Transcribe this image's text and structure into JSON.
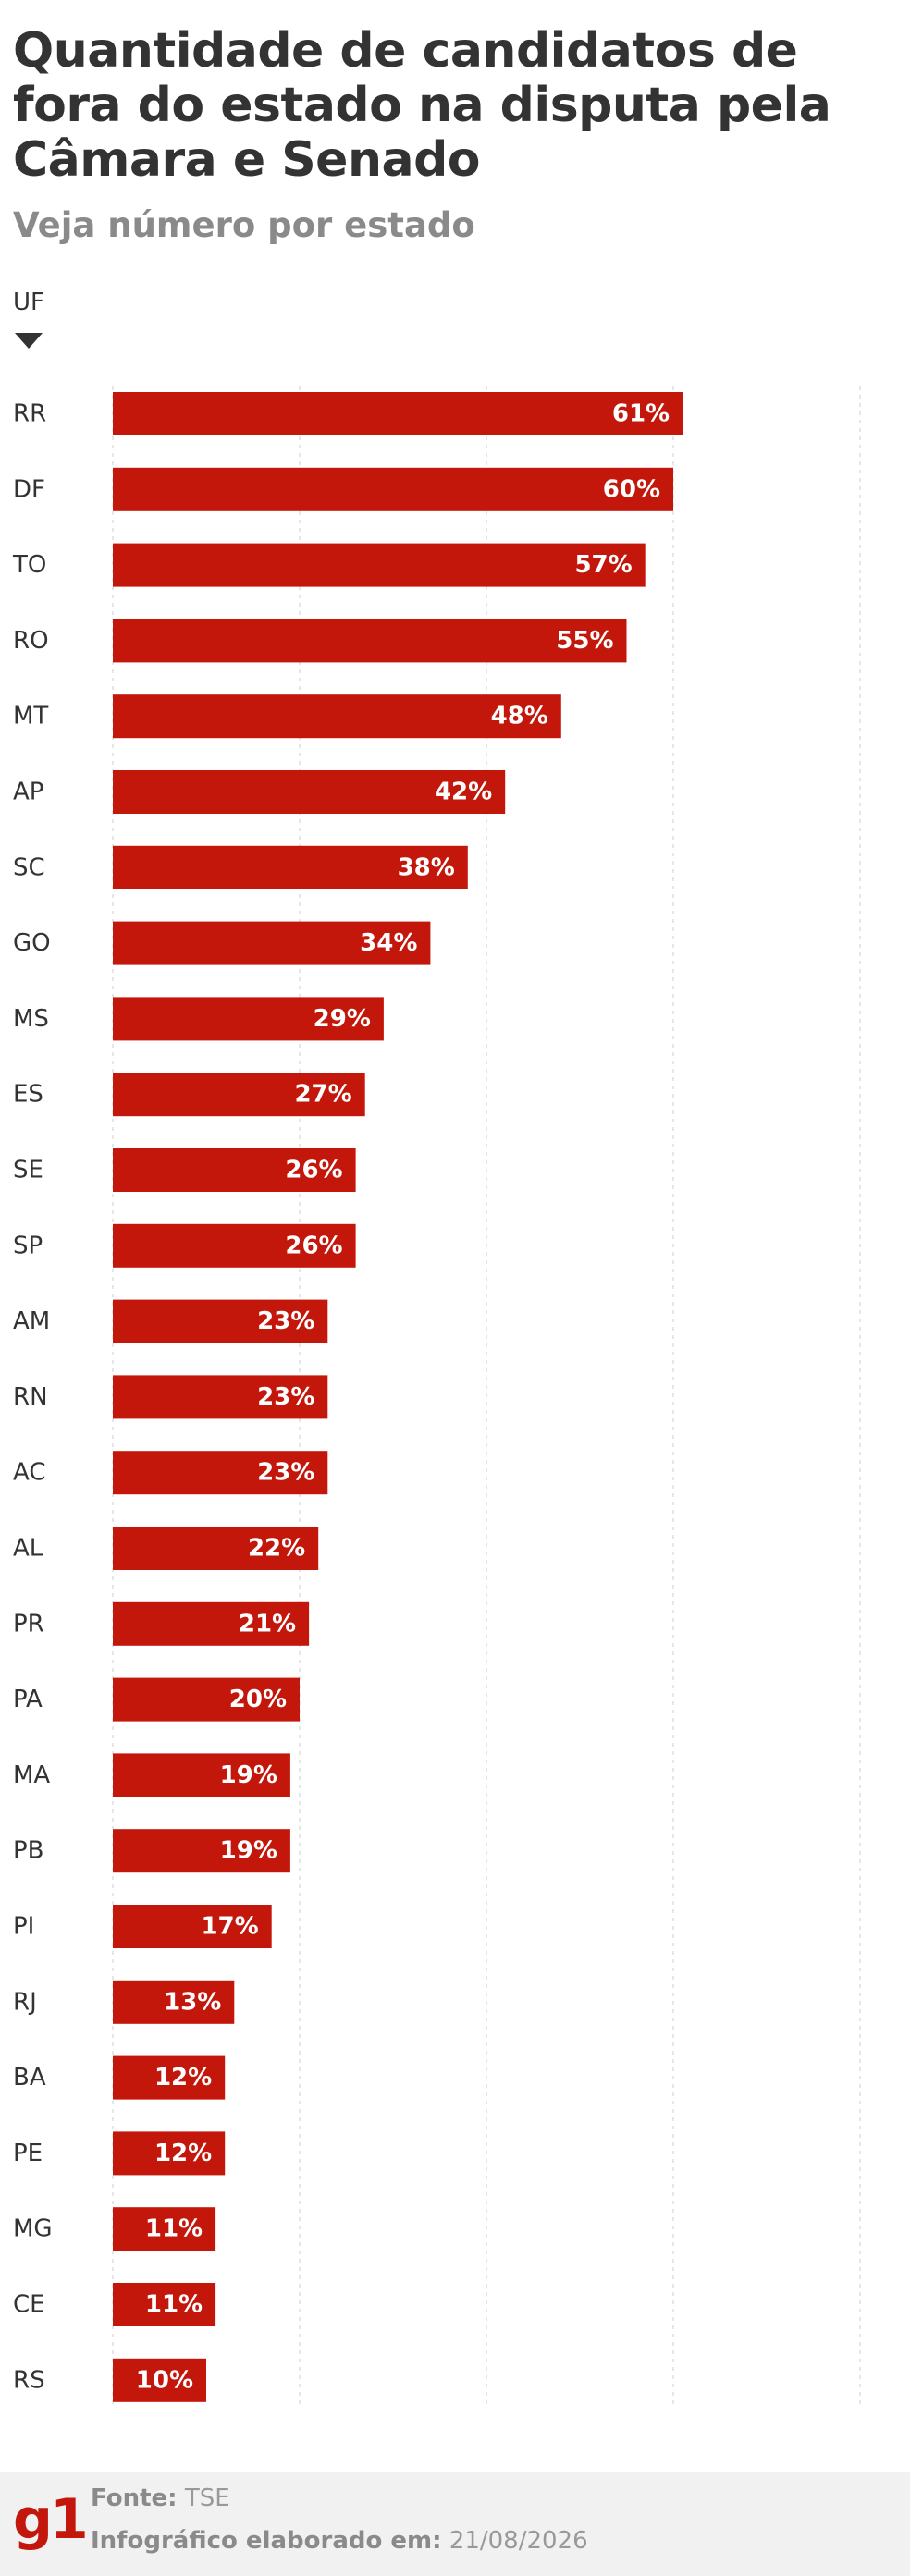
{
  "header": {
    "title": "Quantidade de candidatos de fora do estado na disputa pela Câmara e Senado",
    "subtitle": "Veja número por estado"
  },
  "table": {
    "column_label": "UF",
    "sort_icon": "caret-down-icon"
  },
  "colors": {
    "bar": "#c4170c",
    "bar_label": "#ffffff",
    "grid": "#dddddd",
    "text": "#333333",
    "logo": "#c4170c"
  },
  "chart_data": {
    "type": "bar",
    "orientation": "horizontal",
    "categories": [
      "RR",
      "DF",
      "TO",
      "RO",
      "MT",
      "AP",
      "SC",
      "GO",
      "MS",
      "ES",
      "SE",
      "SP",
      "AM",
      "RN",
      "AC",
      "AL",
      "PR",
      "PA",
      "MA",
      "PB",
      "PI",
      "RJ",
      "BA",
      "PE",
      "MG",
      "CE",
      "RS"
    ],
    "values": [
      61,
      60,
      57,
      55,
      48,
      42,
      38,
      34,
      29,
      27,
      26,
      26,
      23,
      23,
      23,
      22,
      21,
      20,
      19,
      19,
      17,
      13,
      12,
      12,
      11,
      11,
      10
    ],
    "value_labels": [
      "61%",
      "60%",
      "57%",
      "55%",
      "48%",
      "42%",
      "38%",
      "34%",
      "29%",
      "27%",
      "26%",
      "26%",
      "23%",
      "23%",
      "23%",
      "22%",
      "21%",
      "20%",
      "19%",
      "19%",
      "17%",
      "13%",
      "12%",
      "12%",
      "11%",
      "11%",
      "10%"
    ],
    "xlim": [
      0,
      80
    ],
    "gridlines": [
      0,
      20,
      40,
      60,
      80
    ],
    "grid": true,
    "sorted_by": "UF column, descending value"
  },
  "footer": {
    "logo_text": "g1",
    "source_label": "Fonte:",
    "source_value": "TSE",
    "date_label": "Infográfico elaborado em:",
    "date_value": "21/08/2026"
  }
}
